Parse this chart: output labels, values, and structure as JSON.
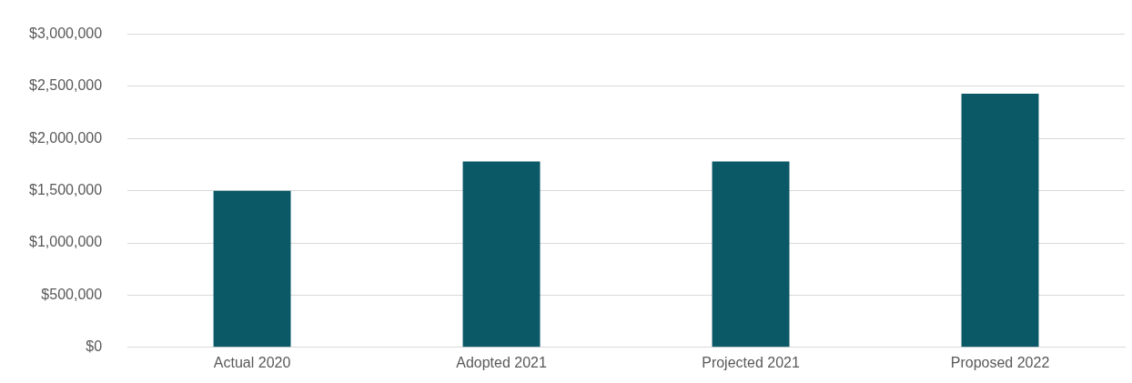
{
  "chart_data": {
    "type": "bar",
    "categories": [
      "Actual 2020",
      "Adopted 2021",
      "Projected 2021",
      "Proposed 2022"
    ],
    "values": [
      1500000,
      1780000,
      1780000,
      2430000
    ],
    "color": "#0b5866",
    "ylim": [
      0,
      3000000
    ],
    "yticks": [
      {
        "value": 0,
        "label": "$0"
      },
      {
        "value": 500000,
        "label": "$500,000"
      },
      {
        "value": 1000000,
        "label": "$1,000,000"
      },
      {
        "value": 1500000,
        "label": "$1,500,000"
      },
      {
        "value": 2000000,
        "label": "$2,000,000"
      },
      {
        "value": 2500000,
        "label": "$2,500,000"
      },
      {
        "value": 3000000,
        "label": "$3,000,000"
      }
    ],
    "grid": "y",
    "legend": false
  }
}
